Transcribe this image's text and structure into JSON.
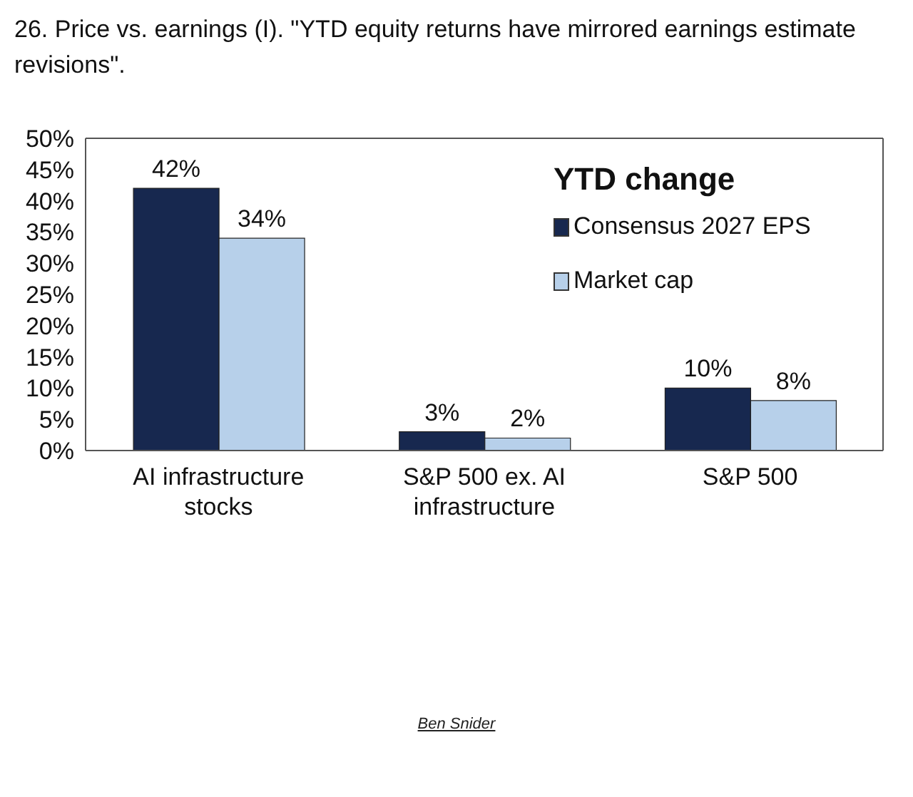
{
  "chart_data": {
    "type": "bar",
    "title": "26. Price vs. earnings (I). \"YTD equity returns have mirrored earnings estimate revisions\".",
    "categories": [
      "AI infrastructure stocks",
      "S&P 500 ex. AI infrastructure",
      "S&P 500"
    ],
    "series": [
      {
        "name": "Consensus 2027 EPS",
        "color": "#17284f",
        "values": [
          42,
          3,
          10
        ],
        "value_labels": [
          "42%",
          "3%",
          "10%"
        ]
      },
      {
        "name": "Market cap",
        "color": "#b7d0ea",
        "values": [
          34,
          2,
          8
        ],
        "value_labels": [
          "34%",
          "2%",
          "8%"
        ]
      }
    ],
    "legend_title": "YTD change",
    "legend": "top right",
    "grid": false,
    "ylim": [
      0,
      50
    ],
    "yticks": [
      {
        "value": 0,
        "label": "0%"
      },
      {
        "value": 5,
        "label": "5%"
      },
      {
        "value": 10,
        "label": "10%"
      },
      {
        "value": 15,
        "label": "15%"
      },
      {
        "value": 20,
        "label": "20%"
      },
      {
        "value": 25,
        "label": "25%"
      },
      {
        "value": 30,
        "label": "30%"
      },
      {
        "value": 35,
        "label": "35%"
      },
      {
        "value": 40,
        "label": "40%"
      },
      {
        "value": 45,
        "label": "45%"
      },
      {
        "value": 50,
        "label": "50%"
      }
    ],
    "annotations": [
      "Ben Snider"
    ]
  }
}
